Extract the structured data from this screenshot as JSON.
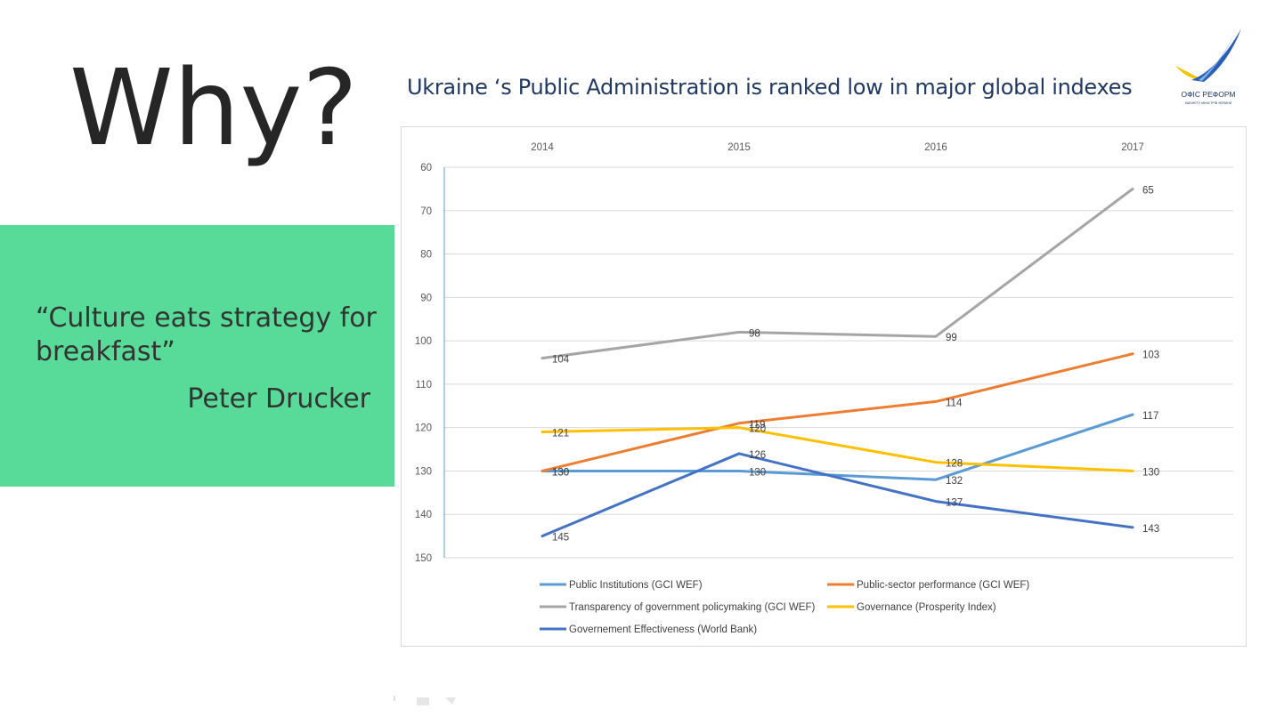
{
  "slide": {
    "heading": "Why?",
    "quote": "“Culture eats strategy for breakfast”",
    "author": "Peter Drucker",
    "chart_title": "Ukraine ‘s Public Administration is ranked low in major global indexes",
    "logo_text": "ОФІС РЕФОРМ",
    "logo_subtext": "КАБІНЕТУ МІНІСТРІВ УКРАЇНИ"
  },
  "chart_data": {
    "type": "line",
    "x": [
      "2014",
      "2015",
      "2016",
      "2017"
    ],
    "ylim": [
      60,
      150
    ],
    "y_reversed": true,
    "y_ticks": [
      60,
      70,
      80,
      90,
      100,
      110,
      120,
      130,
      140,
      150
    ],
    "x_axis_position": "top",
    "grid": true,
    "legend_position": "bottom",
    "series": [
      {
        "name": "Public Institutions (GCI WEF)",
        "color": "#5b9bd5",
        "values": [
          130,
          130,
          132,
          117
        ]
      },
      {
        "name": "Public-sector performance (GCI WEF)",
        "color": "#ed7d31",
        "values": [
          130,
          119,
          114,
          103
        ]
      },
      {
        "name": "Transparency of government policymaking (GCI WEF)",
        "color": "#a5a5a5",
        "values": [
          104,
          98,
          99,
          65
        ]
      },
      {
        "name": "Governance (Prosperity Index)",
        "color": "#ffc000",
        "values": [
          121,
          120,
          128,
          130
        ]
      },
      {
        "name": "Governement Effectiveness (World Bank)",
        "color": "#4472c4",
        "values": [
          145,
          126,
          137,
          143
        ]
      }
    ]
  }
}
